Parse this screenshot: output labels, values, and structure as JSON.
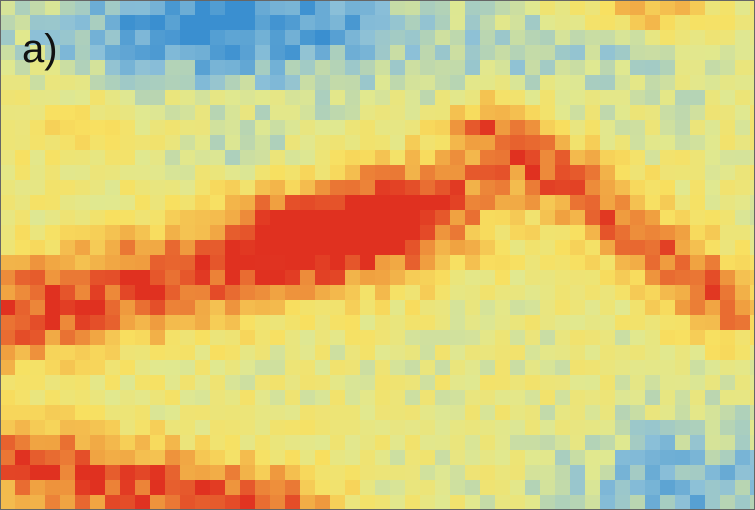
{
  "panel_label": "a)"
}
